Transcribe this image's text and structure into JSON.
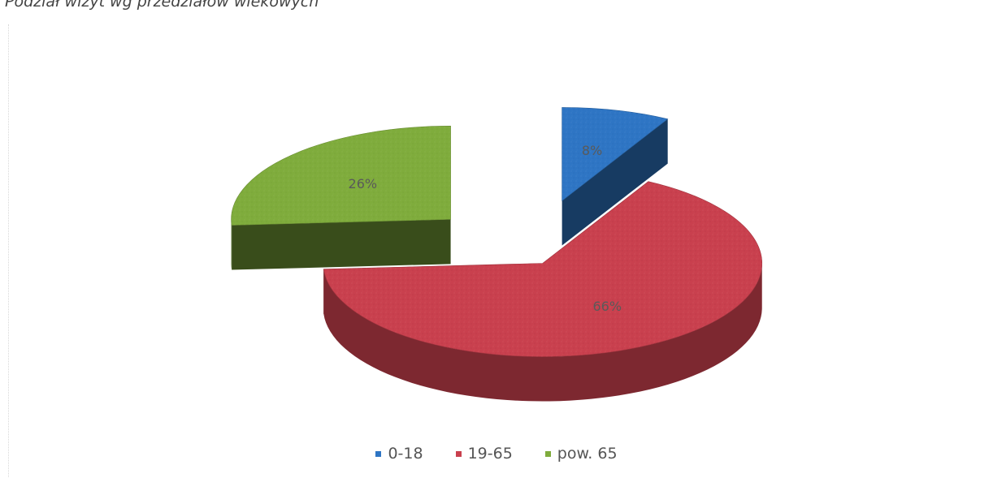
{
  "chart_data": {
    "type": "pie",
    "title": "Podział wizyt wg przedziałów wiekowych",
    "style": "3d-exploded",
    "legend_position": "bottom",
    "slices": [
      {
        "label": "0-18",
        "value": 8,
        "display": "8%",
        "color": "#2e75c4"
      },
      {
        "label": "19-65",
        "value": 66,
        "display": "66%",
        "color": "#c9404e"
      },
      {
        "label": "pow. 65",
        "value": 26,
        "display": "26%",
        "color": "#7fac3c"
      }
    ]
  }
}
